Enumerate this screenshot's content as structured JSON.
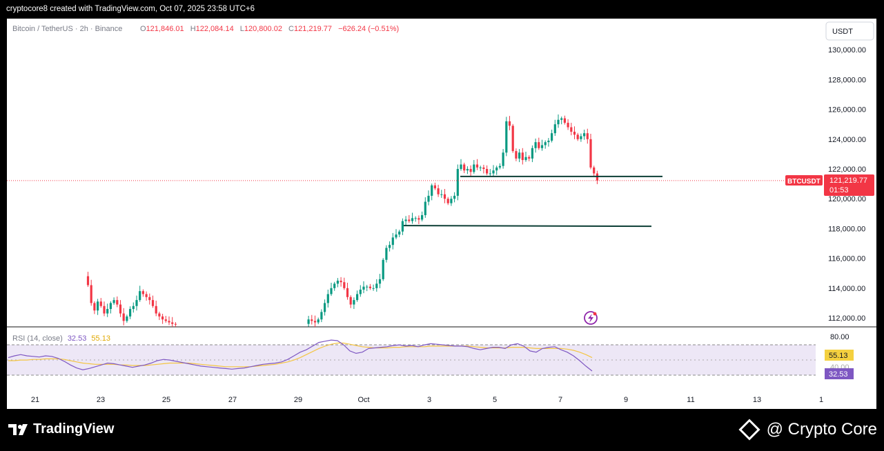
{
  "caption": "cryptocore8 created with TradingView.com, Oct 07, 2025 23:58 UTC+6",
  "header": {
    "symbol": "Bitcoin / TetherUS · 2h · Binance",
    "o_label": "O",
    "o_value": "121,846.01",
    "h_label": "H",
    "h_value": "122,084.14",
    "l_label": "L",
    "l_value": "120,800.02",
    "c_label": "C",
    "c_value": "121,219.77",
    "change": "−626.24 (−0.51%)"
  },
  "currency_button": "USDT",
  "price_tag": {
    "symbol": "BTCUSDT",
    "price": "121,219.77",
    "countdown": "01:53"
  },
  "rsi": {
    "label": "RSI (14, close)",
    "value": "32.53",
    "ma_value": "55.13",
    "tick_80": "80.00",
    "tick_40": "40.00",
    "color_rsi": "#7e57c2",
    "color_ma": "#f4c542"
  },
  "colors": {
    "up": "#089981",
    "down": "#f23645",
    "line": "#0b3d34",
    "price_line": "#f23645"
  },
  "footer": {
    "logo": "TradingView",
    "brand": "@ Crypto Core"
  },
  "chart_data": {
    "type": "candlestick",
    "yticks": [
      "130,000.00",
      "128,000.00",
      "126,000.00",
      "124,000.00",
      "122,000.00",
      "120,000.00",
      "118,000.00",
      "116,000.00",
      "114,000.00",
      "112,000.00"
    ],
    "ytick_values": [
      130000,
      128000,
      126000,
      124000,
      122000,
      120000,
      118000,
      116000,
      114000,
      112000
    ],
    "ylim": [
      111400,
      132000
    ],
    "x_labels": [
      "21",
      "23",
      "25",
      "27",
      "29",
      "Oct",
      "3",
      "5",
      "7",
      "9",
      "11",
      "13",
      "1"
    ],
    "horizontal_levels": [
      121500,
      118200
    ],
    "last_price": 121219.77,
    "close_path": [
      [
        0,
        115700
      ],
      [
        4,
        115900
      ],
      [
        8,
        116000
      ],
      [
        12,
        115800
      ],
      [
        16,
        115800
      ],
      [
        20,
        115700
      ],
      [
        22,
        115500
      ],
      [
        24,
        114800
      ],
      [
        25,
        114200
      ],
      [
        26,
        113000
      ],
      [
        27,
        112500
      ],
      [
        28,
        113100
      ],
      [
        29,
        112800
      ],
      [
        30,
        112300
      ],
      [
        31,
        112600
      ],
      [
        32,
        113000
      ],
      [
        33,
        113200
      ],
      [
        34,
        112900
      ],
      [
        35,
        112300
      ],
      [
        36,
        111800
      ],
      [
        37,
        112100
      ],
      [
        38,
        112600
      ],
      [
        39,
        112800
      ],
      [
        40,
        113200
      ],
      [
        41,
        113800
      ],
      [
        42,
        113600
      ],
      [
        43,
        113400
      ],
      [
        44,
        113200
      ],
      [
        45,
        112800
      ],
      [
        46,
        112300
      ],
      [
        47,
        112100
      ],
      [
        48,
        111900
      ],
      [
        49,
        111800
      ],
      [
        50,
        111700
      ],
      [
        51,
        111600
      ],
      [
        52,
        111550
      ],
      [
        92,
        111600
      ],
      [
        93,
        111900
      ],
      [
        94,
        111800
      ],
      [
        95,
        111700
      ],
      [
        96,
        111900
      ],
      [
        97,
        112400
      ],
      [
        98,
        113000
      ],
      [
        99,
        113600
      ],
      [
        100,
        114000
      ],
      [
        101,
        114300
      ],
      [
        102,
        114500
      ],
      [
        103,
        114400
      ],
      [
        104,
        114000
      ],
      [
        105,
        113400
      ],
      [
        106,
        112900
      ],
      [
        107,
        113200
      ],
      [
        108,
        113600
      ],
      [
        109,
        113900
      ],
      [
        110,
        114100
      ],
      [
        111,
        114100
      ],
      [
        112,
        114000
      ],
      [
        113,
        114000
      ],
      [
        114,
        114300
      ],
      [
        115,
        114600
      ],
      [
        116,
        115900
      ],
      [
        117,
        116700
      ],
      [
        118,
        116900
      ],
      [
        119,
        117400
      ],
      [
        120,
        117600
      ],
      [
        121,
        117800
      ],
      [
        122,
        118500
      ],
      [
        123,
        118600
      ],
      [
        124,
        118500
      ],
      [
        125,
        118700
      ],
      [
        126,
        118700
      ],
      [
        127,
        118600
      ],
      [
        128,
        118900
      ],
      [
        129,
        119800
      ],
      [
        130,
        120200
      ],
      [
        131,
        120900
      ],
      [
        132,
        120700
      ],
      [
        133,
        120300
      ],
      [
        134,
        120300
      ],
      [
        135,
        120000
      ],
      [
        136,
        119700
      ],
      [
        137,
        120000
      ],
      [
        138,
        120200
      ],
      [
        139,
        122000
      ],
      [
        140,
        122300
      ],
      [
        141,
        121900
      ],
      [
        142,
        122000
      ],
      [
        143,
        121800
      ],
      [
        144,
        122300
      ],
      [
        145,
        122100
      ],
      [
        146,
        122100
      ],
      [
        147,
        122000
      ],
      [
        148,
        121700
      ],
      [
        149,
        121700
      ],
      [
        150,
        121900
      ],
      [
        151,
        122100
      ],
      [
        152,
        122200
      ],
      [
        153,
        123100
      ],
      [
        154,
        125200
      ],
      [
        155,
        124900
      ],
      [
        156,
        123200
      ],
      [
        157,
        122700
      ],
      [
        158,
        123100
      ],
      [
        159,
        122600
      ],
      [
        160,
        122800
      ],
      [
        161,
        122700
      ],
      [
        162,
        123400
      ],
      [
        163,
        123800
      ],
      [
        164,
        123400
      ],
      [
        165,
        123600
      ],
      [
        166,
        123800
      ],
      [
        167,
        123900
      ],
      [
        168,
        124400
      ],
      [
        169,
        125000
      ],
      [
        170,
        125300
      ],
      [
        171,
        125400
      ],
      [
        172,
        125100
      ],
      [
        173,
        124800
      ],
      [
        174,
        124500
      ],
      [
        175,
        124300
      ],
      [
        176,
        124000
      ],
      [
        177,
        124200
      ],
      [
        178,
        124400
      ],
      [
        179,
        124000
      ],
      [
        180,
        122100
      ],
      [
        181,
        121700
      ],
      [
        182,
        121220
      ]
    ],
    "rsi": {
      "ylim": [
        0,
        100
      ],
      "yticks": [
        80,
        40
      ],
      "values": [
        55,
        58,
        60,
        58,
        57,
        56,
        58,
        57,
        54,
        49,
        43,
        38,
        35,
        37,
        40,
        43,
        46,
        45,
        43,
        41,
        39,
        41,
        43,
        46,
        50,
        52,
        51,
        49,
        47,
        45,
        43,
        41,
        40,
        39,
        38,
        37,
        36,
        37,
        38,
        40,
        42,
        44,
        45,
        46,
        48,
        52,
        58,
        64,
        68,
        74,
        80,
        82,
        84,
        83,
        76,
        66,
        62,
        64,
        70,
        71,
        72,
        73,
        75,
        76,
        74,
        75,
        73,
        76,
        78,
        77,
        76,
        75,
        74,
        74,
        73,
        70,
        68,
        70,
        72,
        72,
        70,
        76,
        78,
        74,
        66,
        64,
        70,
        72,
        73,
        68,
        64,
        58,
        50,
        41,
        33
      ],
      "ma": [
        50,
        50,
        51,
        51,
        52,
        52,
        53,
        53,
        53,
        52,
        50,
        48,
        46,
        45,
        44,
        44,
        44,
        44,
        43,
        43,
        42,
        42,
        42,
        43,
        44,
        45,
        46,
        46,
        46,
        46,
        45,
        44,
        43,
        42,
        41,
        40,
        40,
        40,
        40,
        40,
        41,
        42,
        43,
        44,
        46,
        48,
        51,
        55,
        60,
        65,
        70,
        74,
        77,
        79,
        79,
        77,
        75,
        73,
        72,
        71,
        71,
        71,
        72,
        72,
        73,
        73,
        73,
        73,
        74,
        74,
        74,
        74,
        74,
        74,
        74,
        73,
        72,
        71,
        71,
        71,
        71,
        72,
        72,
        72,
        71,
        70,
        70,
        70,
        70,
        70,
        69,
        67,
        64,
        60,
        55
      ]
    }
  }
}
